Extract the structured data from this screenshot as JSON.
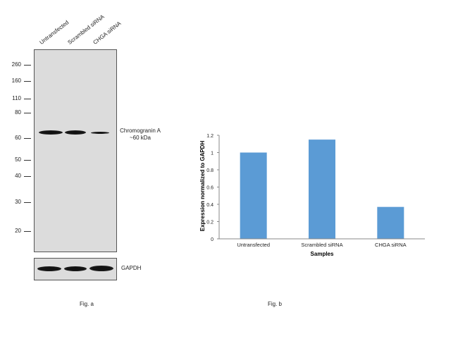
{
  "blot": {
    "lanes": [
      "Untransfected",
      "Scrambled siRNA",
      "CHGA siRNA"
    ],
    "mw_markers": [
      "260",
      "160",
      "110",
      "80",
      "60",
      "50",
      "40",
      "30",
      "20"
    ],
    "target_label_line1": "Chromogranin A",
    "target_label_line2": "~60 kDa",
    "loading_control": "GAPDH",
    "caption": "Fig. a"
  },
  "chart_caption": "Fig. b",
  "chart_data": {
    "type": "bar",
    "categories": [
      "Untransfected",
      "Scrambled siRNA",
      "CHGA siRNA"
    ],
    "values": [
      1.0,
      1.15,
      0.37
    ],
    "xlabel": "Samples",
    "ylabel": "Expression  normalized to GAPDH",
    "ylim": [
      0,
      1.2
    ],
    "yticks": [
      "0",
      "0.2",
      "0.4",
      "0.6",
      "0.8",
      "1",
      "1.2"
    ],
    "grid": false,
    "bar_color": "#5b9bd5"
  }
}
